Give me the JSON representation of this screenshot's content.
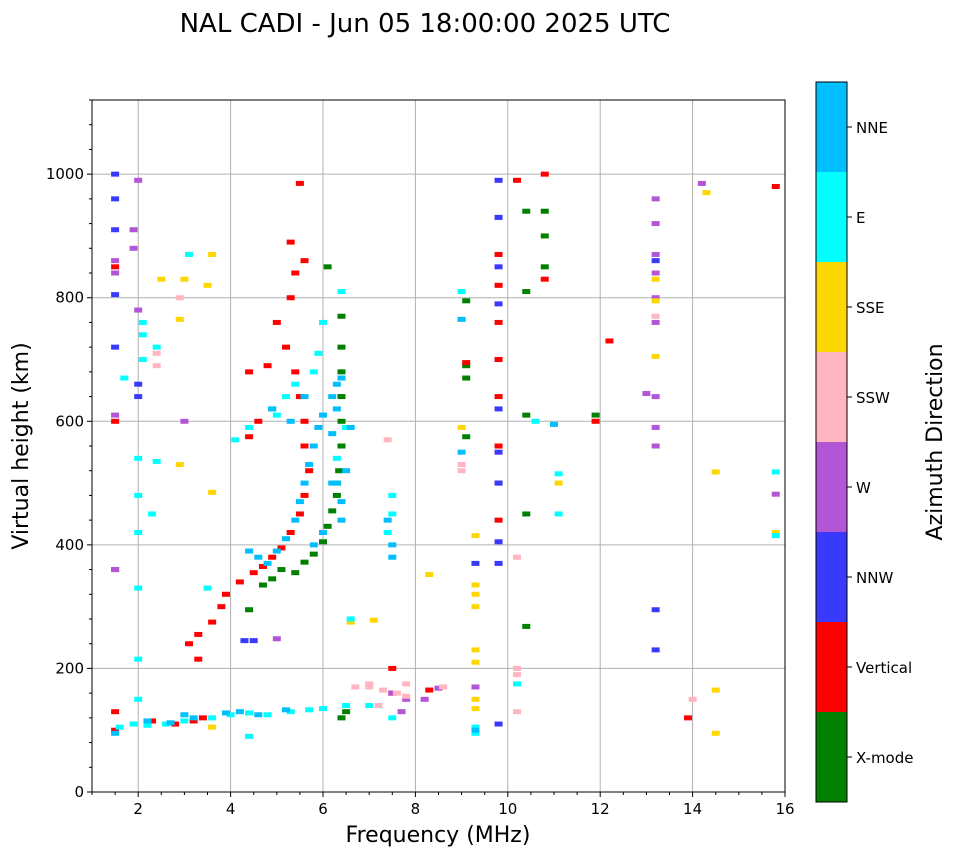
{
  "chart_data": {
    "type": "scatter",
    "title": "NAL CADI - Jun 05 18:00:00 2025 UTC",
    "xlabel": "Frequency (MHz)",
    "ylabel": "Virtual height (km)",
    "xlim": [
      1,
      16
    ],
    "ylim": [
      0,
      1120
    ],
    "xticks": [
      2,
      4,
      6,
      8,
      10,
      12,
      14,
      16
    ],
    "yticks": [
      0,
      200,
      400,
      600,
      800,
      1000
    ],
    "grid": true,
    "colorbar": {
      "label": "Azimuth Direction",
      "categories": [
        {
          "name": "X-mode",
          "color": "#008000"
        },
        {
          "name": "Vertical",
          "color": "#ff0000"
        },
        {
          "name": "NNW",
          "color": "#3a3aff"
        },
        {
          "name": "W",
          "color": "#b256d6"
        },
        {
          "name": "SSW",
          "color": "#ffb6c1"
        },
        {
          "name": "SSE",
          "color": "#ffd700"
        },
        {
          "name": "E",
          "color": "#00ffff"
        },
        {
          "name": "NNE",
          "color": "#00bfff"
        }
      ]
    },
    "series": [
      {
        "name": "X-mode",
        "points": [
          [
            6.4,
            120
          ],
          [
            6.5,
            130
          ],
          [
            5.4,
            355
          ],
          [
            5.6,
            372
          ],
          [
            5.8,
            385
          ],
          [
            6.0,
            405
          ],
          [
            6.1,
            430
          ],
          [
            6.2,
            455
          ],
          [
            6.3,
            480
          ],
          [
            6.35,
            520
          ],
          [
            6.4,
            560
          ],
          [
            6.4,
            600
          ],
          [
            6.4,
            640
          ],
          [
            6.4,
            680
          ],
          [
            6.4,
            720
          ],
          [
            6.4,
            770
          ],
          [
            6.1,
            850
          ],
          [
            4.7,
            335
          ],
          [
            4.9,
            345
          ],
          [
            5.1,
            360
          ],
          [
            9.1,
            575
          ],
          [
            9.1,
            670
          ],
          [
            9.1,
            690
          ],
          [
            9.1,
            795
          ],
          [
            10.4,
            450
          ],
          [
            10.4,
            610
          ],
          [
            10.4,
            810
          ],
          [
            10.4,
            940
          ],
          [
            10.8,
            850
          ],
          [
            10.8,
            900
          ],
          [
            10.8,
            940
          ],
          [
            11.9,
            610
          ],
          [
            4.4,
            295
          ],
          [
            10.4,
            268
          ],
          [
            6.3,
            500
          ]
        ]
      },
      {
        "name": "Vertical",
        "points": [
          [
            1.5,
            100
          ],
          [
            1.5,
            130
          ],
          [
            2.3,
            115
          ],
          [
            2.8,
            110
          ],
          [
            3.2,
            115
          ],
          [
            3.4,
            120
          ],
          [
            3.1,
            240
          ],
          [
            3.3,
            255
          ],
          [
            3.6,
            275
          ],
          [
            3.8,
            300
          ],
          [
            3.9,
            320
          ],
          [
            4.2,
            340
          ],
          [
            4.5,
            355
          ],
          [
            4.7,
            365
          ],
          [
            4.9,
            380
          ],
          [
            5.1,
            395
          ],
          [
            5.3,
            420
          ],
          [
            5.5,
            450
          ],
          [
            5.6,
            480
          ],
          [
            5.7,
            520
          ],
          [
            5.6,
            560
          ],
          [
            5.6,
            600
          ],
          [
            5.5,
            640
          ],
          [
            5.4,
            680
          ],
          [
            5.2,
            720
          ],
          [
            5.0,
            760
          ],
          [
            5.3,
            800
          ],
          [
            5.4,
            840
          ],
          [
            5.3,
            890
          ],
          [
            5.6,
            860
          ],
          [
            5.5,
            985
          ],
          [
            4.4,
            575
          ],
          [
            4.6,
            600
          ],
          [
            4.8,
            690
          ],
          [
            4.4,
            680
          ],
          [
            9.8,
            500
          ],
          [
            9.8,
            560
          ],
          [
            9.8,
            640
          ],
          [
            9.8,
            700
          ],
          [
            9.8,
            760
          ],
          [
            9.8,
            820
          ],
          [
            9.8,
            870
          ],
          [
            9.8,
            440
          ],
          [
            10.8,
            1000
          ],
          [
            10.8,
            830
          ],
          [
            11.9,
            600
          ],
          [
            12.2,
            730
          ],
          [
            13.9,
            120
          ],
          [
            15.8,
            980
          ],
          [
            10.2,
            990
          ],
          [
            8.3,
            165
          ],
          [
            9.1,
            695
          ],
          [
            1.5,
            600
          ],
          [
            1.5,
            850
          ],
          [
            3.3,
            215
          ],
          [
            7.5,
            160
          ],
          [
            7.5,
            200
          ]
        ]
      },
      {
        "name": "NNW",
        "points": [
          [
            1.5,
            960
          ],
          [
            1.5,
            1000
          ],
          [
            1.5,
            910
          ],
          [
            1.5,
            805
          ],
          [
            1.5,
            720
          ],
          [
            1.5,
            360
          ],
          [
            2.0,
            640
          ],
          [
            2.0,
            660
          ],
          [
            9.8,
            990
          ],
          [
            9.8,
            930
          ],
          [
            9.8,
            850
          ],
          [
            9.8,
            790
          ],
          [
            9.8,
            620
          ],
          [
            9.8,
            550
          ],
          [
            9.8,
            500
          ],
          [
            9.8,
            405
          ],
          [
            9.8,
            370
          ],
          [
            9.8,
            110
          ],
          [
            13.2,
            295
          ],
          [
            13.2,
            230
          ],
          [
            13.2,
            860
          ],
          [
            9.3,
            370
          ],
          [
            4.5,
            245
          ],
          [
            4.3,
            245
          ]
        ]
      },
      {
        "name": "W",
        "points": [
          [
            1.5,
            840
          ],
          [
            1.5,
            860
          ],
          [
            1.5,
            610
          ],
          [
            1.5,
            360
          ],
          [
            1.9,
            880
          ],
          [
            1.9,
            910
          ],
          [
            13.2,
            960
          ],
          [
            13.2,
            920
          ],
          [
            13.2,
            870
          ],
          [
            13.2,
            840
          ],
          [
            13.2,
            800
          ],
          [
            13.2,
            760
          ],
          [
            13.2,
            640
          ],
          [
            13.2,
            590
          ],
          [
            13.2,
            560
          ],
          [
            13.0,
            645
          ],
          [
            14.2,
            985
          ],
          [
            15.8,
            482
          ],
          [
            8.5,
            168
          ],
          [
            7.8,
            150
          ],
          [
            7.5,
            160
          ],
          [
            9.3,
            170
          ],
          [
            3.0,
            600
          ],
          [
            2.0,
            990
          ],
          [
            2.0,
            780
          ],
          [
            5.0,
            248
          ],
          [
            8.2,
            150
          ],
          [
            7.7,
            130
          ]
        ]
      },
      {
        "name": "SSW",
        "points": [
          [
            6.7,
            170
          ],
          [
            7.0,
            170
          ],
          [
            7.3,
            165
          ],
          [
            7.6,
            160
          ],
          [
            7.8,
            155
          ],
          [
            7.2,
            140
          ],
          [
            7.0,
            175
          ],
          [
            8.6,
            170
          ],
          [
            9.0,
            530
          ],
          [
            9.0,
            520
          ],
          [
            10.2,
            200
          ],
          [
            10.2,
            190
          ],
          [
            10.2,
            380
          ],
          [
            10.2,
            130
          ],
          [
            2.4,
            710
          ],
          [
            2.4,
            690
          ],
          [
            7.4,
            570
          ],
          [
            14.0,
            150
          ],
          [
            13.2,
            770
          ],
          [
            2.9,
            800
          ],
          [
            7.8,
            175
          ]
        ]
      },
      {
        "name": "SSE",
        "points": [
          [
            9.3,
            230
          ],
          [
            9.3,
            210
          ],
          [
            9.3,
            150
          ],
          [
            9.3,
            135
          ],
          [
            9.3,
            320
          ],
          [
            9.3,
            300
          ],
          [
            9.3,
            335
          ],
          [
            9.3,
            415
          ],
          [
            9.0,
            590
          ],
          [
            9.0,
            765
          ],
          [
            14.5,
            95
          ],
          [
            14.5,
            165
          ],
          [
            14.5,
            518
          ],
          [
            14.3,
            970
          ],
          [
            13.2,
            830
          ],
          [
            13.2,
            705
          ],
          [
            13.2,
            795
          ],
          [
            11.1,
            500
          ],
          [
            3.6,
            870
          ],
          [
            3.0,
            830
          ],
          [
            2.9,
            530
          ],
          [
            3.6,
            485
          ],
          [
            2.5,
            830
          ],
          [
            2.9,
            765
          ],
          [
            3.5,
            820
          ],
          [
            8.3,
            352
          ],
          [
            7.1,
            278
          ],
          [
            3.6,
            105
          ],
          [
            15.8,
            420
          ],
          [
            6.6,
            275
          ]
        ]
      },
      {
        "name": "E",
        "points": [
          [
            1.6,
            105
          ],
          [
            1.9,
            110
          ],
          [
            2.2,
            108
          ],
          [
            2.6,
            110
          ],
          [
            3.0,
            115
          ],
          [
            3.6,
            120
          ],
          [
            4.0,
            125
          ],
          [
            4.4,
            128
          ],
          [
            4.8,
            125
          ],
          [
            5.3,
            130
          ],
          [
            5.7,
            133
          ],
          [
            6.0,
            135
          ],
          [
            6.5,
            140
          ],
          [
            7.0,
            140
          ],
          [
            7.5,
            120
          ],
          [
            7.5,
            450
          ],
          [
            7.5,
            480
          ],
          [
            7.4,
            420
          ],
          [
            2.1,
            700
          ],
          [
            2.1,
            740
          ],
          [
            2.1,
            760
          ],
          [
            2.0,
            540
          ],
          [
            2.0,
            480
          ],
          [
            2.0,
            420
          ],
          [
            2.0,
            330
          ],
          [
            2.0,
            150
          ],
          [
            2.0,
            215
          ],
          [
            1.7,
            670
          ],
          [
            2.4,
            720
          ],
          [
            2.4,
            535
          ],
          [
            2.3,
            450
          ],
          [
            3.1,
            870
          ],
          [
            3.5,
            330
          ],
          [
            4.1,
            570
          ],
          [
            4.4,
            590
          ],
          [
            4.9,
            620
          ],
          [
            5.2,
            640
          ],
          [
            5.4,
            660
          ],
          [
            5.8,
            680
          ],
          [
            5.9,
            710
          ],
          [
            6.0,
            760
          ],
          [
            6.3,
            540
          ],
          [
            6.5,
            590
          ],
          [
            9.0,
            810
          ],
          [
            9.3,
            105
          ],
          [
            9.3,
            95
          ],
          [
            10.2,
            175
          ],
          [
            10.6,
            600
          ],
          [
            11.1,
            515
          ],
          [
            11.1,
            450
          ],
          [
            15.8,
            518
          ],
          [
            15.8,
            415
          ],
          [
            5.0,
            610
          ],
          [
            4.4,
            90
          ],
          [
            6.4,
            810
          ],
          [
            6.6,
            280
          ]
        ]
      },
      {
        "name": "NNE",
        "points": [
          [
            1.5,
            95
          ],
          [
            2.2,
            115
          ],
          [
            2.7,
            112
          ],
          [
            3.2,
            120
          ],
          [
            3.9,
            128
          ],
          [
            4.2,
            130
          ],
          [
            4.6,
            125
          ],
          [
            5.2,
            133
          ],
          [
            4.4,
            390
          ],
          [
            4.6,
            380
          ],
          [
            4.8,
            370
          ],
          [
            5.0,
            390
          ],
          [
            5.2,
            410
          ],
          [
            5.4,
            440
          ],
          [
            5.5,
            470
          ],
          [
            5.6,
            500
          ],
          [
            5.7,
            530
          ],
          [
            5.8,
            560
          ],
          [
            5.9,
            590
          ],
          [
            6.0,
            610
          ],
          [
            6.2,
            640
          ],
          [
            6.3,
            660
          ],
          [
            6.4,
            670
          ],
          [
            6.3,
            620
          ],
          [
            6.2,
            580
          ],
          [
            6.4,
            440
          ],
          [
            6.4,
            470
          ],
          [
            6.3,
            500
          ],
          [
            6.0,
            420
          ],
          [
            5.8,
            400
          ],
          [
            4.9,
            620
          ],
          [
            5.3,
            600
          ],
          [
            5.6,
            640
          ],
          [
            7.5,
            380
          ],
          [
            7.5,
            400
          ],
          [
            7.4,
            440
          ],
          [
            9.0,
            550
          ],
          [
            9.0,
            765
          ],
          [
            11.0,
            595
          ],
          [
            3.0,
            125
          ],
          [
            6.6,
            590
          ],
          [
            6.2,
            500
          ],
          [
            6.5,
            520
          ],
          [
            9.3,
            100
          ]
        ]
      }
    ]
  }
}
